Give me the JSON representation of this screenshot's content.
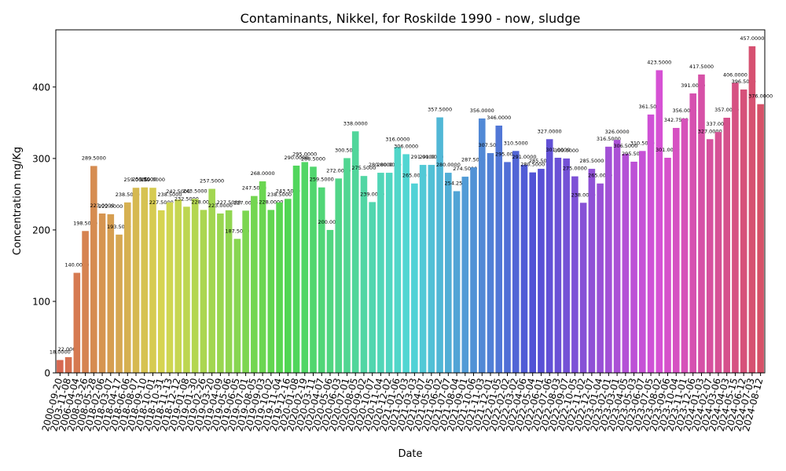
{
  "chart_data": {
    "type": "bar",
    "title": "Contaminants, Nikkel, for Roskilde 1990 - now, sludge",
    "x_label": "Date",
    "y_label": "Concentration mg/Kg",
    "palette": "husl",
    "categories": [
      "2000-09-20",
      "2003-11-08",
      "2006-04-04",
      "2008-03-26",
      "2008-05-28",
      "2018-02-06",
      "2018-03-07",
      "2018-04-17",
      "2018-06-06",
      "2018-08-07",
      "2018-09-10",
      "2018-10-01",
      "2018-10-31",
      "2018-11-13",
      "2018-12-12",
      "2019-01-08",
      "2019-01-30",
      "2019-02-26",
      "2019-03-20",
      "2019-04-09",
      "2019-05-06",
      "2019-06-05",
      "2019-07-01",
      "2019-08-05",
      "2019-09-03",
      "2019-10-02",
      "2019-11-04",
      "2019-12-16",
      "2020-01-08",
      "2020-02-19",
      "2020-03-11",
      "2020-04-07",
      "2020-05-06",
      "2020-06-03",
      "2020-07-01",
      "2020-08-05",
      "2020-09-02",
      "2020-10-07",
      "2020-11-04",
      "2020-12-02",
      "2021-01-06",
      "2021-02-03",
      "2021-03-03",
      "2021-04-07",
      "2021-05-05",
      "2021-06-02",
      "2021-07-07",
      "2021-08-04",
      "2021-09-01",
      "2021-10-06",
      "2021-11-03",
      "2021-12-01",
      "2022-01-05",
      "2022-02-02",
      "2022-03-02",
      "2022-04-06",
      "2022-05-04",
      "2022-06-01",
      "2022-07-06",
      "2022-08-03",
      "2022-09-07",
      "2022-10-05",
      "2022-11-02",
      "2022-12-07",
      "2023-01-04",
      "2023-02-01",
      "2023-03-01",
      "2023-04-05",
      "2023-05-03",
      "2023-06-07",
      "2023-07-05",
      "2023-08-02",
      "2023-09-06",
      "2023-10-04",
      "2023-11-01",
      "2023-12-06",
      "2024-01-03",
      "2024-02-07",
      "2024-03-06",
      "2024-04-03",
      "2024-05-15",
      "2024-06-12",
      "2024-07-03",
      "2024-08-12"
    ],
    "values": [
      18,
      22,
      140,
      198.5,
      289.5,
      223,
      222,
      193.5,
      238.5,
      259,
      259.5,
      259,
      227.5,
      238.5,
      242.5,
      232.5,
      243.5,
      228,
      257.5,
      223,
      227.5,
      187.5,
      227,
      247.5,
      268,
      228,
      238.5,
      243.5,
      290,
      295,
      288.5,
      259.5,
      200,
      272,
      300.5,
      338,
      275.5,
      239,
      280,
      280,
      316,
      306,
      265,
      291,
      291,
      357.5,
      280,
      254.25,
      274.5,
      287.5,
      356,
      307.5,
      346,
      295,
      310.5,
      291,
      280.5,
      285.5,
      327,
      301,
      300,
      275,
      238,
      285.5,
      265,
      316.5,
      326,
      306.5,
      295.5,
      310.5,
      361.5,
      423.5,
      301,
      342.75,
      356,
      391,
      417.5,
      327,
      337,
      357,
      406,
      396.5,
      457,
      376
    ],
    "value_labels": [
      "18.0000",
      "22.0000",
      "140.0000",
      "198.5000",
      "289.5000",
      "223.0000",
      "222.0000",
      "193.5000",
      "238.5000",
      "259.0000",
      "259.5000",
      "259.0000",
      "227.5000",
      "238.5000",
      "242.5000",
      "232.5000",
      "243.5000",
      "228.0000",
      "257.5000",
      "223.0000",
      "227.5000",
      "187.5000",
      "227.0000",
      "247.5000",
      "268.0000",
      "228.0000",
      "238.5000",
      "243.5000",
      "290.0000",
      "295.0000",
      "288.5000",
      "259.5000",
      "200.0000",
      "272.0000",
      "300.5000",
      "338.0000",
      "275.5000",
      "239.0000",
      "280.0000",
      "280.0000",
      "316.0000",
      "306.0000",
      "265.0000",
      "291.0000",
      "291.0000",
      "357.5000",
      "280.0000",
      "254.2500",
      "274.5000",
      "287.5000",
      "356.0000",
      "307.5000",
      "346.0000",
      "295.0000",
      "310.5000",
      "291.0000",
      "280.5000",
      "285.5000",
      "327.0000",
      "301.0000",
      "300.0000",
      "275.0000",
      "238.0000",
      "285.5000",
      "265.0000",
      "316.5000",
      "326.0000",
      "306.5000",
      "295.5000",
      "310.5000",
      "361.5000",
      "423.5000",
      "301.0000",
      "342.7500",
      "356.0000",
      "391.0000",
      "417.5000",
      "327.0000",
      "337.0000",
      "357.0000",
      "406.0000",
      "396.5000",
      "457.0000",
      "376.0000"
    ],
    "ylim": [
      0,
      480
    ],
    "yticks": [
      0,
      100,
      200,
      300,
      400
    ]
  }
}
